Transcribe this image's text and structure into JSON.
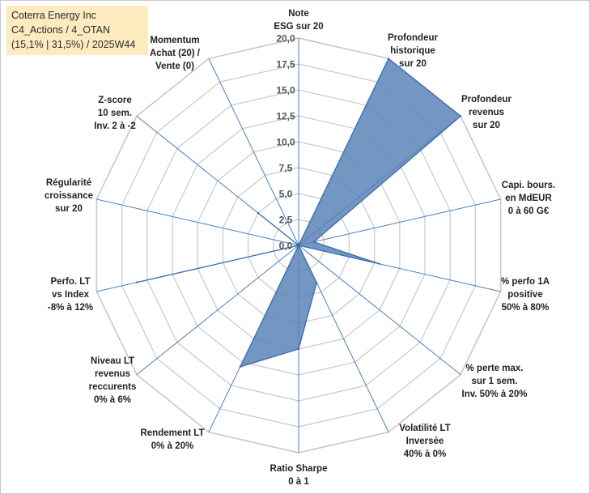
{
  "info": {
    "company": "Coterra Energy Inc",
    "portfolio": "C4_Actions / 4_OTAN",
    "stats": "(15,1% | 31,5%) / 2025W44"
  },
  "colors": {
    "fill": "#5b84b8",
    "stroke": "#3b6db0",
    "grid": "#c8c8c8",
    "spoke": "#4a7fc0",
    "info_bg": "#fdebc0"
  },
  "chart_data": {
    "type": "radar",
    "title": "",
    "rlim": [
      0,
      20
    ],
    "ticks": [
      "0,0",
      "2,5",
      "5,0",
      "7,5",
      "10,0",
      "12,5",
      "15,0",
      "17,5",
      "20,0"
    ],
    "axes": [
      {
        "label": [
          "Note",
          "ESG sur 20"
        ],
        "value": 0
      },
      {
        "label": [
          "Profondeur",
          "historique",
          "sur 20"
        ],
        "value": 20
      },
      {
        "label": [
          "Profondeur",
          "revenus",
          "sur 20"
        ],
        "value": 20
      },
      {
        "label": [
          "Capi. bours.",
          "en MdEUR",
          "0 à 60 G€"
        ],
        "value": 1.5
      },
      {
        "label": [
          "% perfo 1A",
          "positive",
          "50% à 80%"
        ],
        "value": 8
      },
      {
        "label": [
          "% perte max.",
          "sur 1 sem.",
          "Inv. 50% à 20%"
        ],
        "value": 0
      },
      {
        "label": [
          "Volatilité LT",
          "Inversée",
          "40% à 0%"
        ],
        "value": 4
      },
      {
        "label": [
          "Ratio Sharpe",
          "0 à 1"
        ],
        "value": 10
      },
      {
        "label": [
          "Rendement LT",
          "0% à 20%"
        ],
        "value": 13
      },
      {
        "label": [
          "Niveau LT",
          "revenus",
          "reccurents",
          "0% à 6%"
        ],
        "value": 0
      },
      {
        "label": [
          "Perfo. LT",
          "vs Index",
          "-8% à 12%"
        ],
        "value": 16
      },
      {
        "label": [
          "Régularité",
          "croissance",
          "sur 20"
        ],
        "value": 0
      },
      {
        "label": [
          "Z-score",
          "10 sem.",
          "Inv. 2 à -2"
        ],
        "value": 5
      },
      {
        "label": [
          "Momentum",
          "Achat (20) /",
          "Vente (0)"
        ],
        "value": 0
      }
    ]
  }
}
